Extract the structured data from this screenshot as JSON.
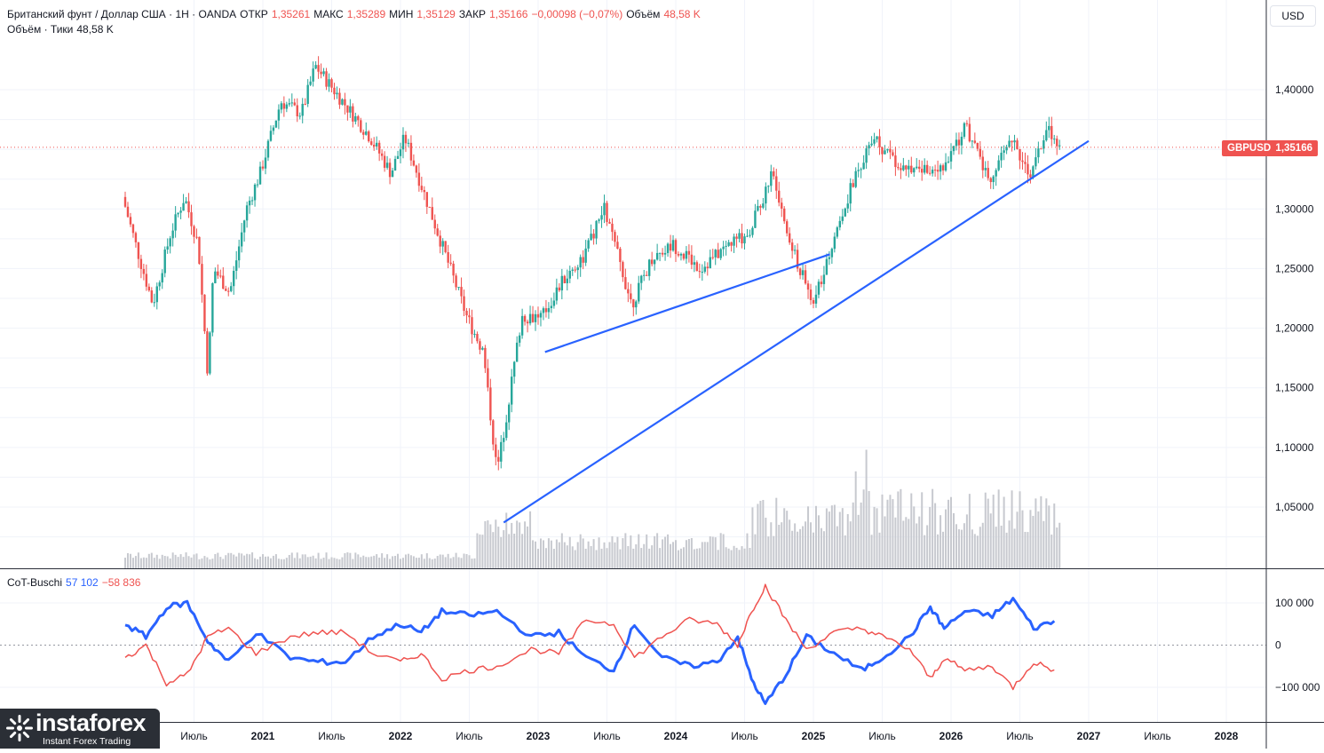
{
  "header": {
    "line1": [
      {
        "text": "Британский фунт / Доллар США · 1H · OANDA",
        "tone": "label"
      },
      {
        "text": "ОТКР",
        "tone": "label"
      },
      {
        "text": "1,35261",
        "tone": "red"
      },
      {
        "text": "МАКС",
        "tone": "label"
      },
      {
        "text": "1,35289",
        "tone": "red"
      },
      {
        "text": "МИН",
        "tone": "label"
      },
      {
        "text": "1,35129",
        "tone": "red"
      },
      {
        "text": "ЗАКР",
        "tone": "label"
      },
      {
        "text": "1,35166",
        "tone": "red"
      },
      {
        "text": "−0,00098 (−0,07%)",
        "tone": "red"
      },
      {
        "text": "Объём",
        "tone": "label"
      },
      {
        "text": "48,58 K",
        "tone": "red"
      }
    ],
    "line2": [
      {
        "text": "Объём · Тики",
        "tone": "label"
      },
      {
        "text": "48,58 K",
        "tone": "label"
      }
    ]
  },
  "currency_button": "USD",
  "price_tag": {
    "symbol": "GBPUSD",
    "value": "1,35166"
  },
  "indicator_legend": [
    {
      "text": "CoT-Buschi",
      "tone": "label"
    },
    {
      "text": "57 102",
      "tone": "blue"
    },
    {
      "text": "−58 836",
      "tone": "red"
    }
  ],
  "logo": {
    "main": "instaforex",
    "sub": "Instant Forex Trading"
  },
  "colors": {
    "up": "#26a69a",
    "down": "#ef5350",
    "trendline": "#2962ff",
    "cot_long": "#2962ff",
    "cot_short": "#ef5350",
    "volume": "#c7c9cf"
  },
  "chart_data": [
    {
      "type": "candlestick",
      "symbol": "GBPUSD",
      "timeframe": "1H",
      "last_price": 1.35166,
      "y_ticks": [
        "1,40000",
        "1,35000",
        "1,30000",
        "1,25000",
        "1,20000",
        "1,15000",
        "1,10000",
        "1,05000"
      ],
      "x_ticks": [
        "Июль",
        "2021",
        "Июль",
        "2022",
        "Июль",
        "2023",
        "Июль",
        "2024",
        "Июль",
        "2025",
        "Июль",
        "2026",
        "Июль",
        "2027",
        "Июль",
        "2028"
      ],
      "ylim": [
        1.0,
        1.45
      ],
      "close_path": [
        {
          "t": 2020.0,
          "c": 1.31
        },
        {
          "t": 2020.12,
          "c": 1.26
        },
        {
          "t": 2020.22,
          "c": 1.22
        },
        {
          "t": 2020.35,
          "c": 1.28
        },
        {
          "t": 2020.45,
          "c": 1.31
        },
        {
          "t": 2020.55,
          "c": 1.27
        },
        {
          "t": 2020.62,
          "c": 1.16
        },
        {
          "t": 2020.66,
          "c": 1.25
        },
        {
          "t": 2020.78,
          "c": 1.23
        },
        {
          "t": 2020.9,
          "c": 1.3
        },
        {
          "t": 2021.0,
          "c": 1.33
        },
        {
          "t": 2021.15,
          "c": 1.39
        },
        {
          "t": 2021.3,
          "c": 1.38
        },
        {
          "t": 2021.4,
          "c": 1.42
        },
        {
          "t": 2021.6,
          "c": 1.39
        },
        {
          "t": 2021.8,
          "c": 1.36
        },
        {
          "t": 2021.95,
          "c": 1.33
        },
        {
          "t": 2022.05,
          "c": 1.36
        },
        {
          "t": 2022.2,
          "c": 1.31
        },
        {
          "t": 2022.35,
          "c": 1.26
        },
        {
          "t": 2022.5,
          "c": 1.21
        },
        {
          "t": 2022.62,
          "c": 1.18
        },
        {
          "t": 2022.72,
          "c": 1.08
        },
        {
          "t": 2022.78,
          "c": 1.12
        },
        {
          "t": 2022.9,
          "c": 1.21
        },
        {
          "t": 2023.05,
          "c": 1.21
        },
        {
          "t": 2023.2,
          "c": 1.24
        },
        {
          "t": 2023.35,
          "c": 1.26
        },
        {
          "t": 2023.5,
          "c": 1.3
        },
        {
          "t": 2023.7,
          "c": 1.22
        },
        {
          "t": 2023.85,
          "c": 1.26
        },
        {
          "t": 2024.0,
          "c": 1.27
        },
        {
          "t": 2024.2,
          "c": 1.25
        },
        {
          "t": 2024.4,
          "c": 1.27
        },
        {
          "t": 2024.55,
          "c": 1.28
        },
        {
          "t": 2024.72,
          "c": 1.33
        },
        {
          "t": 2024.85,
          "c": 1.27
        },
        {
          "t": 2025.02,
          "c": 1.22
        },
        {
          "t": 2025.15,
          "c": 1.27
        },
        {
          "t": 2025.3,
          "c": 1.32
        },
        {
          "t": 2025.45,
          "c": 1.36
        },
        {
          "t": 2025.6,
          "c": 1.34
        },
        {
          "t": 2025.8,
          "c": 1.33
        },
        {
          "t": 2026.0,
          "c": 1.34
        },
        {
          "t": 2026.12,
          "c": 1.37
        },
        {
          "t": 2026.3,
          "c": 1.32
        },
        {
          "t": 2026.45,
          "c": 1.36
        },
        {
          "t": 2026.6,
          "c": 1.33
        },
        {
          "t": 2026.72,
          "c": 1.37
        },
        {
          "t": 2026.8,
          "c": 1.352
        }
      ],
      "trendlines": [
        {
          "from": [
            2022.75,
            1.037
          ],
          "to": [
            2027.0,
            1.357
          ]
        },
        {
          "from": [
            2023.05,
            1.18
          ],
          "to": [
            2025.12,
            1.262
          ]
        }
      ]
    },
    {
      "type": "line",
      "title": "CoT-Buschi",
      "y_ticks": [
        "100 000",
        "0",
        "−100 000"
      ],
      "ylim": [
        -160000,
        160000
      ],
      "series": [
        {
          "color": "#2962ff",
          "x": [
            2020.0,
            2020.15,
            2020.3,
            2020.45,
            2020.6,
            2020.75,
            2020.95,
            2021.2,
            2021.4,
            2021.6,
            2021.8,
            2022.0,
            2022.15,
            2022.3,
            2022.5,
            2022.7,
            2022.95,
            2023.15,
            2023.35,
            2023.55,
            2023.7,
            2023.9,
            2024.1,
            2024.3,
            2024.45,
            2024.55,
            2024.65,
            2024.8,
            2024.95,
            2025.15,
            2025.35,
            2025.5,
            2025.7,
            2025.85,
            2025.95,
            2026.1,
            2026.3,
            2026.45,
            2026.6,
            2026.75
          ],
          "values": [
            50000,
            20000,
            90000,
            100000,
            10000,
            -40000,
            30000,
            -30000,
            -40000,
            -40000,
            20000,
            50000,
            30000,
            80000,
            70000,
            80000,
            20000,
            30000,
            -30000,
            -60000,
            50000,
            -30000,
            -50000,
            -40000,
            20000,
            -80000,
            -140000,
            -70000,
            20000,
            -20000,
            -60000,
            -30000,
            20000,
            90000,
            40000,
            80000,
            70000,
            110000,
            40000,
            57102
          ]
        },
        {
          "color": "#ef5350",
          "x": [
            2020.0,
            2020.15,
            2020.3,
            2020.45,
            2020.6,
            2020.75,
            2020.95,
            2021.2,
            2021.4,
            2021.6,
            2021.8,
            2022.0,
            2022.15,
            2022.3,
            2022.5,
            2022.7,
            2022.95,
            2023.15,
            2023.35,
            2023.55,
            2023.7,
            2023.9,
            2024.1,
            2024.3,
            2024.45,
            2024.55,
            2024.65,
            2024.8,
            2024.95,
            2025.15,
            2025.35,
            2025.5,
            2025.7,
            2025.85,
            2025.95,
            2026.1,
            2026.3,
            2026.45,
            2026.6,
            2026.75
          ],
          "values": [
            -30000,
            0,
            -90000,
            -70000,
            20000,
            40000,
            -20000,
            20000,
            30000,
            30000,
            -20000,
            -40000,
            -20000,
            -80000,
            -60000,
            -50000,
            -10000,
            -20000,
            60000,
            50000,
            -30000,
            20000,
            60000,
            50000,
            0,
            80000,
            140000,
            60000,
            -10000,
            30000,
            40000,
            20000,
            -10000,
            -80000,
            -30000,
            -60000,
            -50000,
            -100000,
            -40000,
            -58836
          ]
        }
      ]
    }
  ]
}
